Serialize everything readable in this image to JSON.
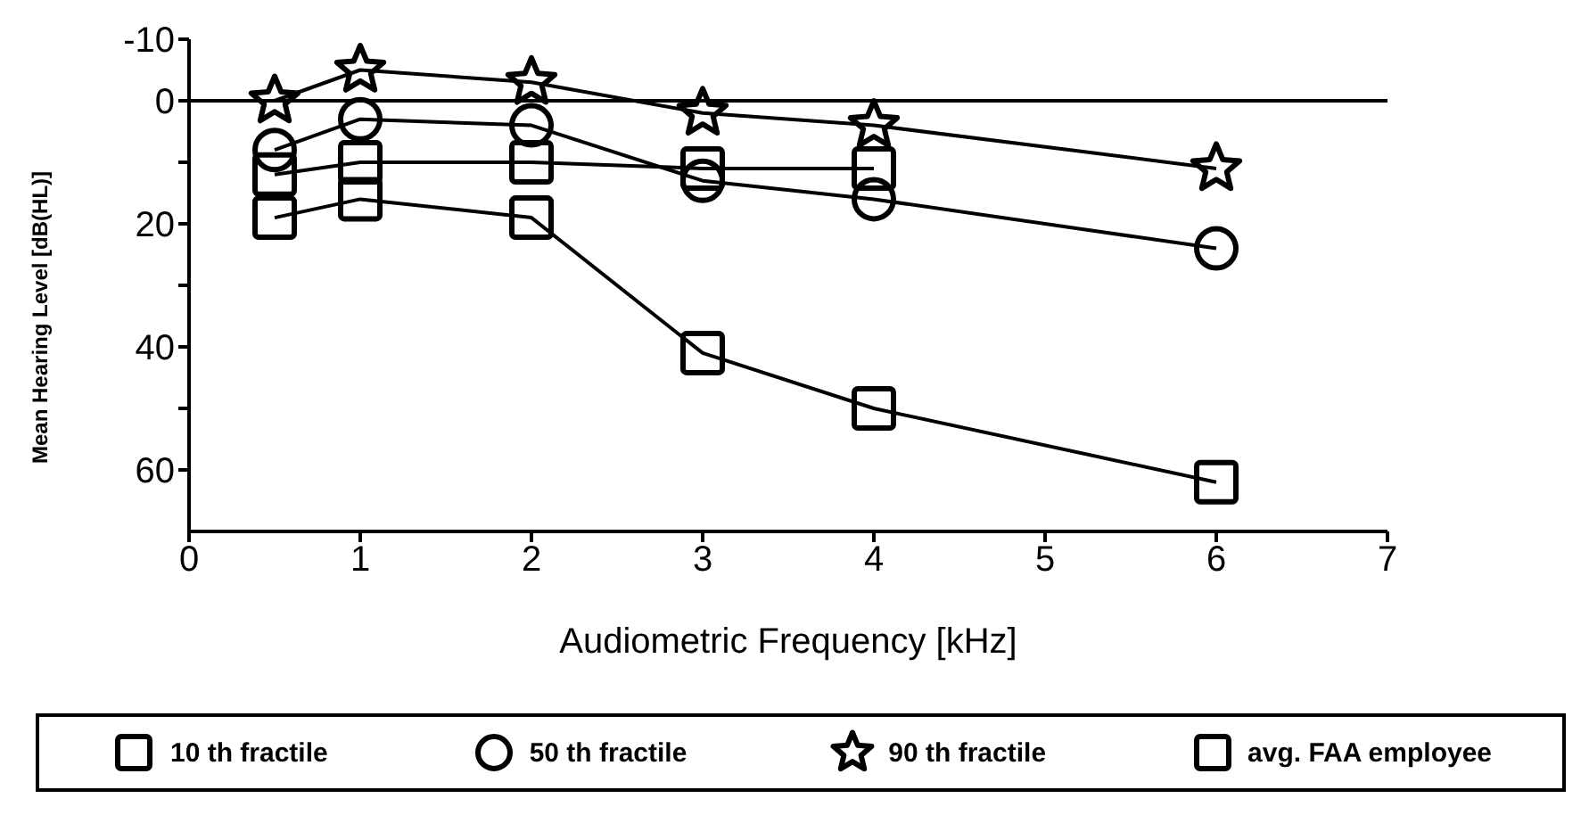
{
  "chart_data": {
    "type": "line",
    "xlabel": "Audiometric Frequency [kHz]",
    "ylabel": "Mean Hearing Level [dB(HL)]",
    "xlim": [
      0,
      7
    ],
    "xticks": [
      0,
      1,
      2,
      3,
      4,
      5,
      6,
      7
    ],
    "ylim": [
      70,
      -10
    ],
    "yticks": [
      -10,
      0,
      {
        "value": 10,
        "label": null
      },
      20,
      {
        "value": 30,
        "label": null
      },
      40,
      {
        "value": 50,
        "label": null
      },
      60
    ],
    "ref_lines": [
      {
        "axis": "y",
        "value": 0,
        "color": "#000000"
      }
    ],
    "legend": "bottom",
    "grid": false,
    "series": [
      {
        "name": "10 th fractile",
        "color": "#000000",
        "marker": "square",
        "x": [
          0.5,
          1,
          2,
          3,
          4,
          6
        ],
        "values": [
          19,
          16,
          19,
          41,
          50,
          62
        ]
      },
      {
        "name": "50 th fractile",
        "color": "#000000",
        "marker": "circle",
        "x": [
          0.5,
          1,
          2,
          3,
          4,
          6
        ],
        "values": [
          8,
          3,
          4,
          13,
          16,
          24
        ]
      },
      {
        "name": "90 th fractile",
        "color": "#000000",
        "marker": "star",
        "x": [
          0.5,
          1,
          2,
          3,
          4,
          6
        ],
        "values": [
          0,
          -5,
          -3,
          2,
          4,
          11
        ]
      },
      {
        "name": "avg. FAA employee",
        "color": "#000000",
        "marker": "square",
        "x": [
          0.5,
          1,
          2,
          3,
          4
        ],
        "values": [
          12,
          10,
          10,
          11,
          11
        ]
      }
    ]
  }
}
